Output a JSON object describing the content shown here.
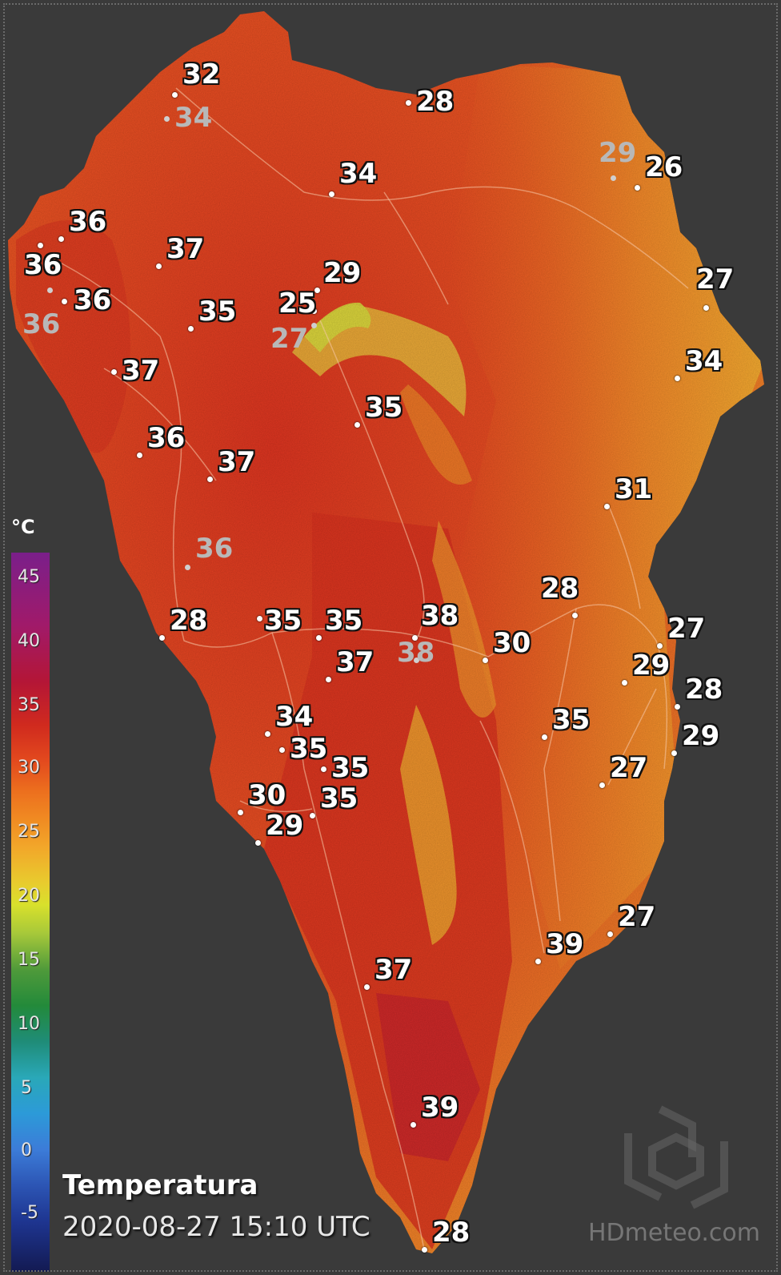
{
  "legend": {
    "unit": "°C",
    "ticks": [
      "45",
      "40",
      "35",
      "30",
      "25",
      "20",
      "15",
      "10",
      "5",
      "0",
      "-5"
    ]
  },
  "title": "Temperatura",
  "timestamp": "2020-08-27 15:10 UTC",
  "watermark": "HDmeteo.com",
  "colors": {
    "background": "#3a3a3a",
    "land_hot": "#d8311f",
    "land_warm": "#ef6a22",
    "land_mild": "#f39a2c",
    "ridge_cool": "#d9d23a"
  },
  "stations": [
    {
      "value": "32",
      "muted": false
    },
    {
      "value": "34",
      "muted": true
    },
    {
      "value": "28",
      "muted": false
    },
    {
      "value": "34",
      "muted": false
    },
    {
      "value": "29",
      "muted": true
    },
    {
      "value": "26",
      "muted": false
    },
    {
      "value": "36",
      "muted": false
    },
    {
      "value": "36",
      "muted": false
    },
    {
      "value": "37",
      "muted": false
    },
    {
      "value": "36",
      "muted": true
    },
    {
      "value": "36",
      "muted": false
    },
    {
      "value": "35",
      "muted": false
    },
    {
      "value": "29",
      "muted": false
    },
    {
      "value": "25",
      "muted": false
    },
    {
      "value": "27",
      "muted": true
    },
    {
      "value": "27",
      "muted": false
    },
    {
      "value": "37",
      "muted": false
    },
    {
      "value": "34",
      "muted": false
    },
    {
      "value": "35",
      "muted": false
    },
    {
      "value": "36",
      "muted": false
    },
    {
      "value": "37",
      "muted": false
    },
    {
      "value": "31",
      "muted": false
    },
    {
      "value": "36",
      "muted": true
    },
    {
      "value": "28",
      "muted": false
    },
    {
      "value": "28",
      "muted": false
    },
    {
      "value": "35",
      "muted": false
    },
    {
      "value": "35",
      "muted": false
    },
    {
      "value": "38",
      "muted": false
    },
    {
      "value": "38",
      "muted": true
    },
    {
      "value": "30",
      "muted": false
    },
    {
      "value": "37",
      "muted": false
    },
    {
      "value": "27",
      "muted": false
    },
    {
      "value": "29",
      "muted": false
    },
    {
      "value": "28",
      "muted": false
    },
    {
      "value": "34",
      "muted": false
    },
    {
      "value": "35",
      "muted": false
    },
    {
      "value": "35",
      "muted": false
    },
    {
      "value": "29",
      "muted": false
    },
    {
      "value": "35",
      "muted": false
    },
    {
      "value": "30",
      "muted": false
    },
    {
      "value": "35",
      "muted": false
    },
    {
      "value": "27",
      "muted": false
    },
    {
      "value": "29",
      "muted": false
    },
    {
      "value": "27",
      "muted": false
    },
    {
      "value": "39",
      "muted": false
    },
    {
      "value": "37",
      "muted": false
    },
    {
      "value": "39",
      "muted": false
    },
    {
      "value": "28",
      "muted": false
    }
  ]
}
